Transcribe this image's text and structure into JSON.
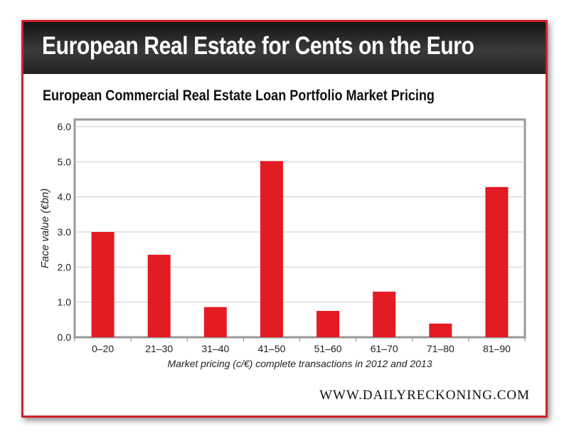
{
  "header": {
    "title": "European Real Estate for Cents on the Euro"
  },
  "brand": "WWW.DAILYRECKONING.COM",
  "chart_data": {
    "type": "bar",
    "title": "European Commercial Real Estate Loan Portfolio Market Pricing",
    "xlabel": "Market pricing (c/€) complete transactions in 2012 and 2013",
    "ylabel": "Face value (€bn)",
    "categories": [
      "0–20",
      "21–30",
      "31–40",
      "41–50",
      "51–60",
      "61–70",
      "71–80",
      "81–90"
    ],
    "values": [
      3.0,
      2.35,
      0.86,
      5.02,
      0.75,
      1.3,
      0.39,
      4.28
    ],
    "ylim": [
      0,
      6
    ],
    "yticks": [
      "0.0",
      "1.0",
      "2.0",
      "3.0",
      "4.0",
      "5.0",
      "6.0"
    ],
    "grid": true,
    "bar_color": "#e31b23"
  }
}
